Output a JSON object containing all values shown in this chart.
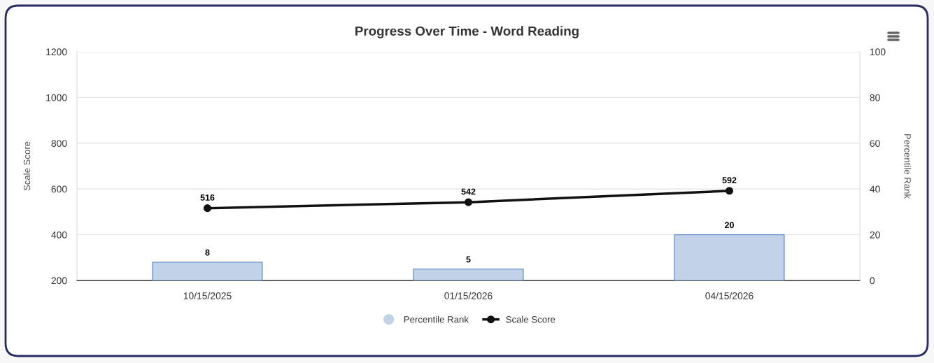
{
  "chart_data": {
    "type": "bar",
    "title": "Progress Over Time - Word Reading",
    "ylabel": "Scale Score",
    "y2label": "Percentile Rank",
    "categories": [
      "10/15/2025",
      "01/15/2026",
      "04/15/2026"
    ],
    "series": [
      {
        "name": "Percentile Rank",
        "axis": "y2",
        "color": "#c2d2e8",
        "values": [
          8,
          5,
          20
        ]
      },
      {
        "name": "Scale Score",
        "type": "line",
        "color": "#111111",
        "values": [
          516,
          542,
          592
        ]
      }
    ],
    "ylim": [
      200,
      1200
    ],
    "yticks": [
      200,
      400,
      600,
      800,
      1000,
      1200
    ],
    "y2lim": [
      0,
      100
    ],
    "y2ticks": [
      0,
      20,
      40,
      60,
      80,
      100
    ],
    "grid": "y",
    "legend": "bottom",
    "marker": "circle",
    "line_style": "solid",
    "data_labels": true
  }
}
